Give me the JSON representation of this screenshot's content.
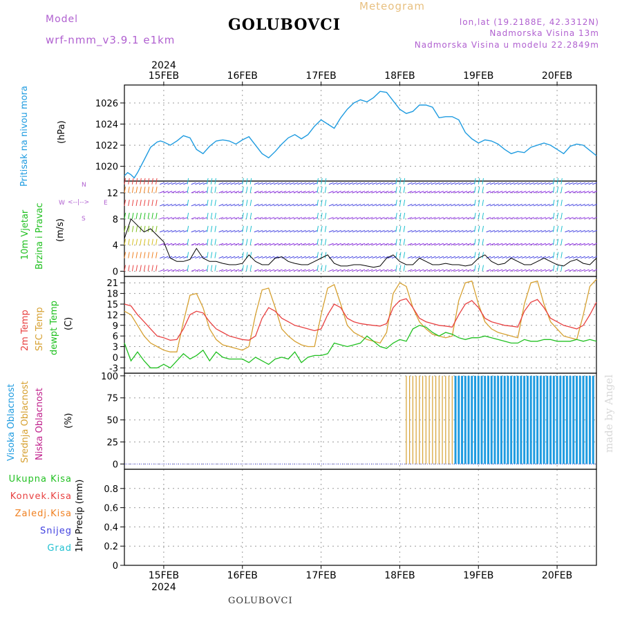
{
  "header": {
    "model_label": "Model",
    "model_name": "wrf-nmm_v3.9.1 e1km",
    "title": "GOLUBOVCI",
    "meteogram": "Meteogram",
    "lonlat": "lon,lat (19.2188E, 42.3312N)",
    "altitude": "Nadmorska Visina 13m",
    "model_altitude": "Nadmorska Visina u modelu 22.2849m"
  },
  "footer": {
    "station": "GOLUBOVCI"
  },
  "watermark": "made by Angel",
  "time_axis": {
    "year_label": "2024",
    "day_labels": [
      "15FEB",
      "16FEB",
      "17FEB",
      "18FEB",
      "19FEB",
      "20FEB"
    ],
    "range_hours": [
      0,
      144
    ],
    "day_ticks_hours": [
      12,
      36,
      60,
      84,
      108,
      132
    ]
  },
  "colors": {
    "pressure": "#1e9be0",
    "temp2m": "#e84040",
    "sfc": "#d6a030",
    "dewpt": "#20c020",
    "high_cloud": "#1e9be0",
    "mid_cloud": "#d6a030",
    "low_cloud": "#c0208c",
    "wind_barb": "#8a2be2",
    "wind_barb_strong": "#20c0d0",
    "title_purple": "#b060d0",
    "meteogram_label": "#e8c080"
  },
  "panels": {
    "pressure": {
      "ylabel_1": "Pritisak na nivou mora",
      "ylabel_2": "(hPa)",
      "ticks": [
        "1020",
        "1022",
        "1024",
        "1026"
      ]
    },
    "wind": {
      "ylabel_1": "10m Vjetar",
      "ylabel_2": "Brzina i Pravac",
      "ylabel_3": "(m/s)",
      "compass_n": "N",
      "compass_s": "S",
      "compass_e": "E",
      "compass_w": "W",
      "ticks": [
        "0",
        "4",
        "8",
        "12"
      ]
    },
    "temperature": {
      "ylabel_1": "2m Temp",
      "ylabel_2": "SFC Temp",
      "ylabel_3": "dewpt Temp",
      "ylabel_4": "(C)",
      "ticks": [
        "-3",
        "0",
        "3",
        "6",
        "9",
        "12",
        "15",
        "18",
        "21"
      ]
    },
    "cloud": {
      "ylabel_1": "Visoka Oblacnost",
      "ylabel_2": "Srednja Oblacnost",
      "ylabel_3": "Niska Oblacnost",
      "ylabel_4": "(%)",
      "ticks": [
        "0",
        "25",
        "50",
        "75",
        "100"
      ]
    },
    "precip": {
      "legend": [
        "Ukupna Kisa",
        "Konvek.Kisa",
        "Zaledj.Kisa",
        "Snijeg",
        "Grad"
      ],
      "legend_colors": [
        "#20c020",
        "#e84040",
        "#f08020",
        "#4040e0",
        "#20c0d0"
      ],
      "ylabel": "1hr Precip (mm)",
      "ticks": [
        "0",
        "0.2",
        "0.4",
        "0.6",
        "0.8"
      ]
    }
  },
  "chart_data": [
    {
      "type": "line",
      "title": "",
      "ylabel": "Pritisak na nivou mora (hPa)",
      "ylim": [
        1018.6,
        1027.7
      ],
      "series": [
        {
          "name": "Pritisak",
          "x": [
            0,
            1,
            2,
            3,
            4,
            6,
            8,
            10,
            11,
            12,
            14,
            16,
            18,
            20,
            22,
            24,
            26,
            28,
            30,
            32,
            34,
            36,
            38,
            40,
            42,
            44,
            46,
            48,
            50,
            52,
            54,
            56,
            58,
            60,
            62,
            64,
            66,
            68,
            70,
            72,
            74,
            76,
            78,
            80,
            82,
            84,
            86,
            88,
            90,
            92,
            94,
            96,
            98,
            100,
            102,
            104,
            106,
            108,
            110,
            112,
            114,
            116,
            118,
            120,
            122,
            124,
            126,
            128,
            130,
            132,
            134,
            136,
            138,
            140,
            142,
            144
          ],
          "y": [
            1019.1,
            1019.4,
            1019.2,
            1018.9,
            1019.4,
            1020.6,
            1021.8,
            1022.3,
            1022.4,
            1022.3,
            1022.0,
            1022.4,
            1022.9,
            1022.7,
            1021.6,
            1021.2,
            1021.9,
            1022.4,
            1022.5,
            1022.4,
            1022.1,
            1022.5,
            1022.8,
            1022.0,
            1021.2,
            1020.8,
            1021.4,
            1022.1,
            1022.7,
            1023.0,
            1022.6,
            1023.0,
            1023.8,
            1024.4,
            1024.0,
            1023.6,
            1024.6,
            1025.4,
            1026.0,
            1026.3,
            1026.1,
            1026.5,
            1027.1,
            1027.0,
            1026.2,
            1025.4,
            1025.0,
            1025.2,
            1025.8,
            1025.8,
            1025.6,
            1024.6,
            1024.7,
            1024.7,
            1024.4,
            1023.2,
            1022.6,
            1022.2,
            1022.5,
            1022.4,
            1022.1,
            1021.6,
            1021.2,
            1021.4,
            1021.3,
            1021.8,
            1022.0,
            1022.2,
            1022.0,
            1021.6,
            1021.2,
            1021.9,
            1022.1,
            1022.0,
            1021.5,
            1021.0
          ]
        }
      ]
    },
    {
      "type": "line",
      "title": "",
      "ylabel": "10m Vjetar Brzina i Pravac (m/s)",
      "ylim": [
        -0.8,
        13.8
      ],
      "series": [
        {
          "name": "Brzina",
          "x": [
            0,
            2,
            4,
            6,
            8,
            10,
            12,
            14,
            16,
            18,
            20,
            22,
            24,
            26,
            28,
            30,
            32,
            34,
            36,
            38,
            40,
            42,
            44,
            46,
            48,
            50,
            52,
            54,
            56,
            58,
            60,
            62,
            64,
            66,
            68,
            70,
            72,
            74,
            76,
            78,
            80,
            82,
            84,
            86,
            88,
            90,
            92,
            94,
            96,
            98,
            100,
            102,
            104,
            106,
            108,
            110,
            112,
            114,
            116,
            118,
            120,
            122,
            124,
            126,
            128,
            130,
            132,
            134,
            136,
            138,
            140,
            142,
            144
          ],
          "y": [
            5.0,
            8.0,
            7.0,
            6.0,
            6.5,
            5.5,
            4.5,
            2.0,
            1.5,
            1.5,
            1.8,
            3.5,
            2.0,
            1.5,
            1.5,
            1.2,
            1.0,
            1.0,
            1.2,
            2.5,
            1.5,
            1.0,
            1.0,
            2.0,
            2.2,
            1.5,
            1.2,
            1.0,
            1.0,
            1.5,
            2.0,
            2.5,
            1.2,
            0.8,
            0.8,
            1.0,
            1.0,
            0.8,
            0.6,
            0.8,
            2.0,
            2.5,
            1.5,
            1.0,
            1.0,
            2.0,
            1.5,
            1.0,
            1.0,
            1.2,
            1.0,
            1.0,
            0.8,
            1.0,
            2.0,
            2.5,
            1.5,
            1.0,
            1.2,
            2.0,
            1.5,
            1.0,
            1.0,
            1.5,
            2.0,
            1.5,
            1.0,
            0.8,
            1.5,
            1.8,
            1.2,
            1.0,
            2.0
          ]
        }
      ]
    },
    {
      "type": "line",
      "title": "",
      "ylabel": "(C)",
      "ylim": [
        -4.5,
        22.8
      ],
      "series": [
        {
          "name": "2m Temp",
          "x": [
            0,
            2,
            4,
            6,
            8,
            10,
            12,
            14,
            16,
            18,
            20,
            22,
            24,
            26,
            28,
            30,
            32,
            34,
            36,
            38,
            40,
            42,
            44,
            46,
            48,
            50,
            52,
            54,
            56,
            58,
            60,
            62,
            64,
            66,
            68,
            70,
            72,
            74,
            76,
            78,
            80,
            82,
            84,
            86,
            88,
            90,
            92,
            94,
            96,
            98,
            100,
            102,
            104,
            106,
            108,
            110,
            112,
            114,
            116,
            118,
            120,
            122,
            124,
            126,
            128,
            130,
            132,
            134,
            136,
            138,
            140,
            142,
            144
          ],
          "y": [
            15,
            14.5,
            12,
            10,
            8,
            6,
            5.5,
            4.8,
            5,
            8,
            12,
            13,
            12.5,
            10,
            8,
            7,
            6,
            5.5,
            5,
            4.8,
            6,
            11,
            14,
            13,
            11,
            10,
            9,
            8.5,
            8,
            7.5,
            8,
            12,
            15,
            14,
            11,
            10,
            9.5,
            9.2,
            9,
            8.8,
            9.5,
            14,
            16,
            16.5,
            14,
            11,
            10,
            9.5,
            9,
            8.8,
            8.5,
            12,
            15,
            16,
            14,
            11,
            10,
            9.5,
            9,
            8.8,
            8.5,
            13,
            15.5,
            16.3,
            14,
            11,
            10,
            9,
            8.5,
            8,
            9,
            12,
            15.5
          ]
        },
        {
          "name": "SFC Temp",
          "x": [
            0,
            2,
            4,
            6,
            8,
            10,
            12,
            14,
            16,
            18,
            20,
            22,
            24,
            26,
            28,
            30,
            32,
            34,
            36,
            38,
            40,
            42,
            44,
            46,
            48,
            50,
            52,
            54,
            56,
            58,
            60,
            62,
            64,
            66,
            68,
            70,
            72,
            74,
            76,
            78,
            80,
            82,
            84,
            86,
            88,
            90,
            92,
            94,
            96,
            98,
            100,
            102,
            104,
            106,
            108,
            110,
            112,
            114,
            116,
            118,
            120,
            122,
            124,
            126,
            128,
            130,
            132,
            134,
            136,
            138,
            140,
            142,
            144
          ],
          "y": [
            13,
            12,
            9,
            6,
            4,
            3,
            2,
            1.5,
            1.5,
            10,
            17.5,
            18,
            14,
            8,
            5,
            3.5,
            3,
            2.5,
            2,
            3,
            12,
            19,
            19.5,
            14,
            8,
            6,
            4.5,
            3.5,
            3,
            3,
            12,
            19.5,
            20.5,
            15,
            9,
            7,
            6,
            5,
            4.5,
            4,
            7,
            18,
            21,
            20,
            14,
            10,
            8,
            6.5,
            6,
            5.5,
            6,
            16,
            21,
            21.5,
            15,
            10,
            8,
            7,
            6.5,
            6,
            5.5,
            15,
            21,
            21.5,
            15,
            10,
            8,
            6,
            5.5,
            5,
            12,
            20,
            22
          ]
        },
        {
          "name": "dewpt Temp",
          "x": [
            0,
            2,
            4,
            6,
            8,
            10,
            12,
            14,
            16,
            18,
            20,
            22,
            24,
            26,
            28,
            30,
            32,
            34,
            36,
            38,
            40,
            42,
            44,
            46,
            48,
            50,
            52,
            54,
            56,
            58,
            60,
            62,
            64,
            66,
            68,
            70,
            72,
            74,
            76,
            78,
            80,
            82,
            84,
            86,
            88,
            90,
            92,
            94,
            96,
            98,
            100,
            102,
            104,
            106,
            108,
            110,
            112,
            114,
            116,
            118,
            120,
            122,
            124,
            126,
            128,
            130,
            132,
            134,
            136,
            138,
            140,
            142,
            144
          ],
          "y": [
            4,
            -1,
            1.5,
            -1,
            -3,
            -3,
            -2,
            -3,
            -1,
            1,
            -0.5,
            0.5,
            2,
            -1,
            1.5,
            0,
            -0.5,
            -0.5,
            -0.5,
            -1.5,
            0,
            -1,
            -2,
            -0.5,
            0,
            -0.5,
            1.5,
            -1.5,
            0,
            0.5,
            0.5,
            1,
            4,
            3.5,
            3,
            3.5,
            4,
            6,
            4.5,
            3,
            2.5,
            4,
            5,
            4.5,
            8,
            9,
            8.5,
            7,
            6,
            7,
            6.5,
            5.5,
            5,
            5.5,
            5.5,
            6,
            5.5,
            5,
            4.5,
            4,
            4,
            5,
            4.5,
            4.5,
            5,
            5,
            4.5,
            4.5,
            4.5,
            5,
            4.5,
            5,
            4.5
          ]
        }
      ]
    },
    {
      "type": "bar",
      "title": "",
      "ylabel": "(%)",
      "ylim": [
        -6,
        103
      ],
      "series": [
        {
          "name": "Visoka Oblacnost",
          "x": [
            86,
            87,
            88,
            89,
            90,
            91,
            92,
            93,
            94,
            95,
            96,
            97,
            98,
            99,
            100,
            101,
            102,
            103,
            104,
            105,
            106,
            107,
            108,
            109,
            110,
            111,
            112,
            113,
            114,
            115,
            116,
            117,
            118,
            119,
            120,
            121,
            122,
            123,
            124,
            125,
            126,
            127,
            128,
            129,
            130,
            131,
            132,
            133,
            134,
            135,
            136,
            137,
            138,
            139,
            140,
            141,
            142,
            143
          ],
          "y": [
            100,
            100,
            100,
            100,
            100,
            100,
            100,
            100,
            100,
            100,
            100,
            100,
            100,
            100,
            100,
            100,
            100,
            100,
            100,
            100,
            100,
            100,
            100,
            100,
            100,
            100,
            100,
            100,
            100,
            100,
            100,
            100,
            100,
            100,
            100,
            100,
            100,
            100,
            100,
            100,
            100,
            100,
            100,
            100,
            100,
            100,
            100,
            100,
            100,
            100,
            100,
            100,
            100,
            100,
            100,
            100,
            100,
            100
          ]
        }
      ]
    }
  ]
}
